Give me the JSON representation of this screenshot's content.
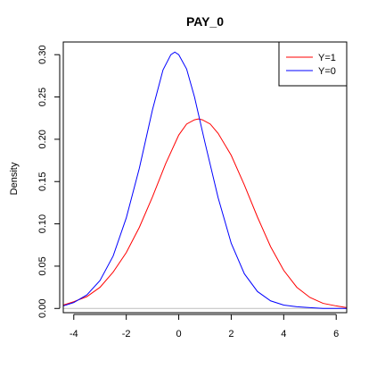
{
  "chart_data": {
    "type": "line",
    "title": "PAY_0",
    "xlabel": "",
    "ylabel": "Density",
    "xlim": [
      -4.4,
      6.4
    ],
    "ylim": [
      -0.005,
      0.315
    ],
    "x_ticks": [
      "-4",
      "-2",
      "0",
      "2",
      "4",
      "6"
    ],
    "y_ticks": [
      "0.00",
      "0.05",
      "0.10",
      "0.15",
      "0.20",
      "0.25",
      "0.30"
    ],
    "legend": {
      "position": "top-right"
    },
    "baseline": 0,
    "series": [
      {
        "name": "Y=1",
        "color": "#ff0000",
        "x": [
          -4.4,
          -4.0,
          -3.5,
          -3.0,
          -2.5,
          -2.0,
          -1.5,
          -1.0,
          -0.5,
          0.0,
          0.3,
          0.6,
          0.75,
          0.9,
          1.2,
          1.5,
          2.0,
          2.5,
          3.0,
          3.5,
          4.0,
          4.5,
          5.0,
          5.5,
          6.0,
          6.4
        ],
        "y": [
          0.004,
          0.008,
          0.014,
          0.025,
          0.043,
          0.066,
          0.096,
          0.132,
          0.171,
          0.205,
          0.218,
          0.223,
          0.224,
          0.223,
          0.218,
          0.207,
          0.181,
          0.146,
          0.108,
          0.073,
          0.045,
          0.025,
          0.013,
          0.006,
          0.003,
          0.001
        ]
      },
      {
        "name": "Y=0",
        "color": "#0000ff",
        "x": [
          -4.4,
          -4.0,
          -3.5,
          -3.0,
          -2.5,
          -2.0,
          -1.5,
          -1.0,
          -0.6,
          -0.3,
          -0.15,
          0.0,
          0.3,
          0.6,
          1.0,
          1.5,
          2.0,
          2.5,
          3.0,
          3.5,
          4.0,
          4.5,
          5.0,
          5.5,
          6.0,
          6.4
        ],
        "y": [
          0.003,
          0.007,
          0.016,
          0.033,
          0.062,
          0.107,
          0.166,
          0.235,
          0.282,
          0.3,
          0.303,
          0.3,
          0.283,
          0.25,
          0.196,
          0.131,
          0.077,
          0.041,
          0.02,
          0.009,
          0.004,
          0.002,
          0.001,
          0.0,
          0.0,
          0.0
        ]
      }
    ]
  }
}
